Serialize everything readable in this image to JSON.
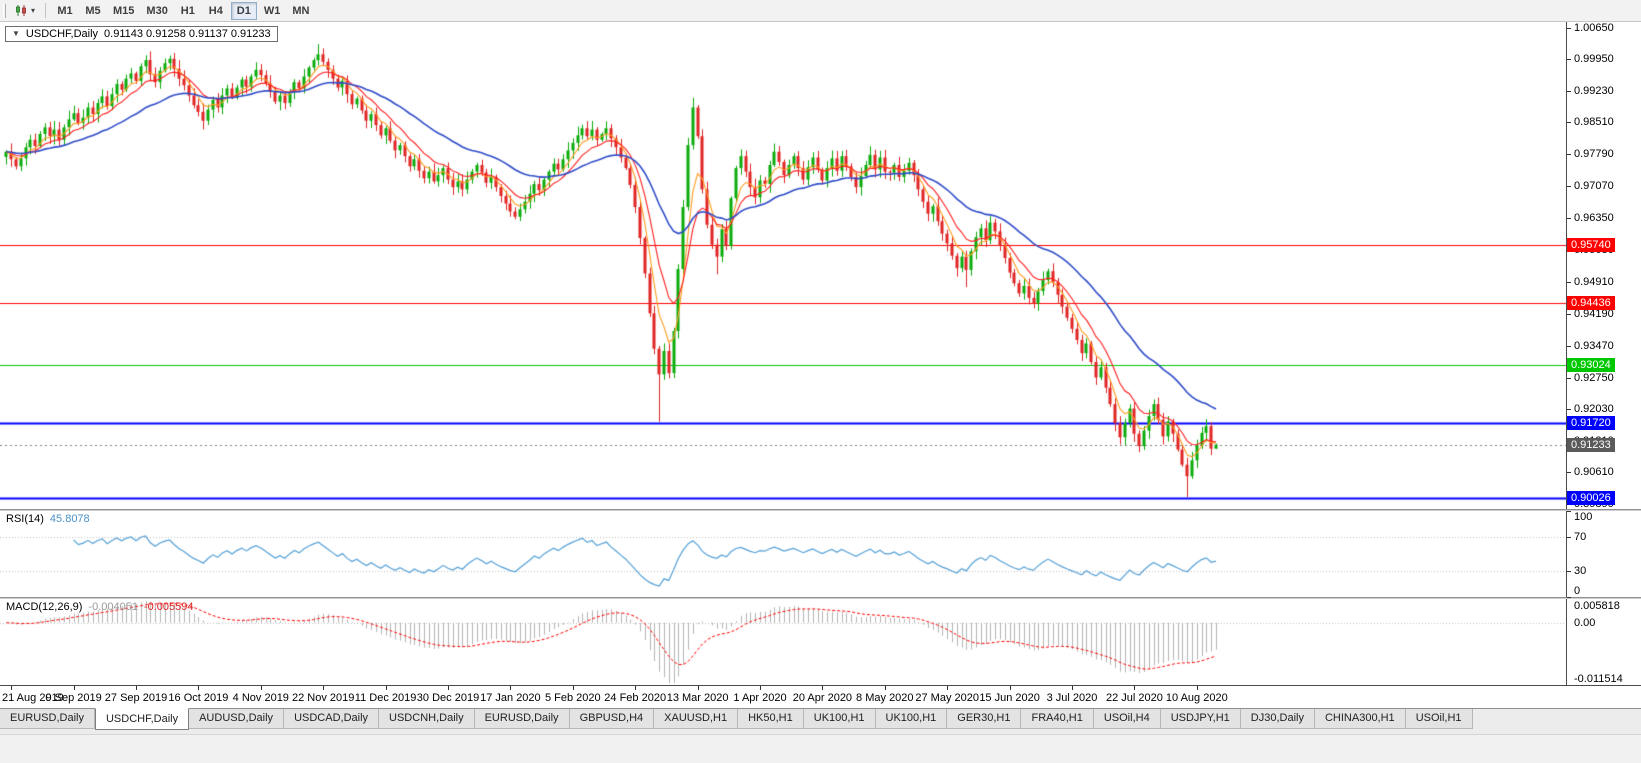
{
  "toolbar": {
    "chart_menu_icon": "candlestick-chart-icon",
    "timeframes": [
      "M1",
      "M5",
      "M15",
      "M30",
      "H1",
      "H4",
      "D1",
      "W1",
      "MN"
    ],
    "active_timeframe": "D1"
  },
  "chart_header": {
    "symbol_label": "USDCHF,Daily",
    "ohlc": "0.91143 0.91258 0.91137 0.91233"
  },
  "price_axis": {
    "ticks": [
      "1.00650",
      "0.99950",
      "0.99230",
      "0.98510",
      "0.97790",
      "0.97070",
      "0.96350",
      "0.95630",
      "0.94910",
      "0.94190",
      "0.93470",
      "0.92750",
      "0.92030",
      "0.91310",
      "0.90610",
      "0.89890"
    ]
  },
  "time_axis": {
    "labels": [
      {
        "text": "21 Aug 2019",
        "bar": 1
      },
      {
        "text": "9 Sep 2019",
        "bar": 14
      },
      {
        "text": "27 Sep 2019",
        "bar": 27
      },
      {
        "text": "16 Oct 2019",
        "bar": 40
      },
      {
        "text": "4 Nov 2019",
        "bar": 53
      },
      {
        "text": "22 Nov 2019",
        "bar": 66
      },
      {
        "text": "11 Dec 2019",
        "bar": 79
      },
      {
        "text": "30 Dec 2019",
        "bar": 92
      },
      {
        "text": "17 Jan 2020",
        "bar": 105
      },
      {
        "text": "5 Feb 2020",
        "bar": 118
      },
      {
        "text": "24 Feb 2020",
        "bar": 131
      },
      {
        "text": "13 Mar 2020",
        "bar": 144
      },
      {
        "text": "1 Apr 2020",
        "bar": 157
      },
      {
        "text": "20 Apr 2020",
        "bar": 170
      },
      {
        "text": "8 May 2020",
        "bar": 183
      },
      {
        "text": "27 May 2020",
        "bar": 196
      },
      {
        "text": "15 Jun 2020",
        "bar": 209
      },
      {
        "text": "3 Jul 2020",
        "bar": 222
      },
      {
        "text": "22 Jul 2020",
        "bar": 235
      },
      {
        "text": "10 Aug 2020",
        "bar": 248
      }
    ]
  },
  "tabs": {
    "items": [
      "EURUSD,Daily",
      "USDCHF,Daily",
      "AUDUSD,Daily",
      "USDCAD,Daily",
      "USDCNH,Daily",
      "EURUSD,Daily",
      "GBPUSD,H4",
      "XAUUSD,H1",
      "HK50,H1",
      "UK100,H1",
      "UK100,H1",
      "GER30,H1",
      "FRA40,H1",
      "USOil,H4",
      "USDJPY,H1",
      "DJ30,Daily",
      "CHINA300,H1",
      "USOil,H1"
    ],
    "active_index": 1
  },
  "chart_data": {
    "type": "candlestick",
    "symbol": "USDCHF",
    "period": "Daily",
    "ohlc_display": {
      "open": 0.91143,
      "high": 0.91258,
      "low": 0.91137,
      "close": 0.91233
    },
    "price_range": {
      "top": 1.0078,
      "bottom": 0.8978
    },
    "colors": {
      "up": "#0bab0b",
      "down": "#e02525",
      "ma_fast": "#ff9b1f",
      "ma_mid": "#ff1f1f",
      "ma_slow": "#2f4cc8",
      "level_red": "#ff0000",
      "level_green": "#00c800",
      "level_blue": "#0000ff",
      "current_price": "#5a5a5a",
      "rsi_line": "#55a0d7",
      "macd_hist": "#b4b4b4",
      "macd_signal": "#ff0000",
      "grid_dotted": "#c0c0c0"
    },
    "levels": [
      {
        "price": 0.9574,
        "label": "0.95740",
        "color": "#ff0000"
      },
      {
        "price": 0.94436,
        "label": "0.94436",
        "color": "#ff0000"
      },
      {
        "price": 0.93024,
        "label": "0.93024",
        "color": "#00c800"
      },
      {
        "price": 0.9172,
        "label": "0.91720",
        "color": "#0000ff"
      },
      {
        "price": 0.90026,
        "label": "0.90026",
        "color": "#0000ff"
      }
    ],
    "current_price": {
      "price": 0.91233,
      "label": "0.91233"
    },
    "moving_averages": [
      {
        "period": 5,
        "color": "#ff9b1f"
      },
      {
        "period": 10,
        "color": "#ff1f1f"
      },
      {
        "period": 30,
        "color": "#2f4cc8"
      }
    ],
    "rsi": {
      "name": "RSI(14)",
      "period": 14,
      "value_display": "45.8078",
      "scale": [
        100,
        70,
        30,
        0
      ],
      "guide_levels": [
        70,
        30
      ]
    },
    "macd": {
      "name": "MACD(12,26,9)",
      "fast": 12,
      "slow": 26,
      "signal_period": 9,
      "value_display": "-0.004051",
      "signal_display": "-0.005594",
      "scale_labels": [
        "0.005818",
        "0.00",
        "-0.011514"
      ]
    },
    "closes": [
      0.9785,
      0.9768,
      0.9752,
      0.977,
      0.9795,
      0.9812,
      0.9798,
      0.9825,
      0.984,
      0.982,
      0.9835,
      0.9812,
      0.984,
      0.9858,
      0.9872,
      0.985,
      0.9862,
      0.9885,
      0.987,
      0.9895,
      0.991,
      0.9888,
      0.9915,
      0.9938,
      0.9925,
      0.995,
      0.9962,
      0.9945,
      0.9978,
      0.9992,
      0.996,
      0.9942,
      0.9968,
      0.9985,
      0.9995,
      0.9972,
      0.995,
      0.9935,
      0.9912,
      0.989,
      0.9875,
      0.9855,
      0.988,
      0.9902,
      0.9885,
      0.9912,
      0.9928,
      0.9908,
      0.993,
      0.9948,
      0.9932,
      0.9955,
      0.997,
      0.9958,
      0.994,
      0.992,
      0.9898,
      0.9912,
      0.9895,
      0.992,
      0.9942,
      0.9928,
      0.9955,
      0.9975,
      0.9992,
      1.0005,
      0.9988,
      0.997,
      0.995,
      0.993,
      0.9945,
      0.9915,
      0.9892,
      0.9905,
      0.9878,
      0.9855,
      0.987,
      0.9845,
      0.9822,
      0.9838,
      0.981,
      0.9788,
      0.98,
      0.9775,
      0.9752,
      0.9768,
      0.9742,
      0.9725,
      0.974,
      0.9718,
      0.9732,
      0.9748,
      0.9722,
      0.9705,
      0.9718,
      0.97,
      0.9722,
      0.974,
      0.9755,
      0.9738,
      0.9715,
      0.9728,
      0.9705,
      0.9685,
      0.9668,
      0.965,
      0.9638,
      0.9655,
      0.9672,
      0.969,
      0.9712,
      0.9698,
      0.9722,
      0.974,
      0.9758,
      0.9745,
      0.9768,
      0.9788,
      0.9805,
      0.9822,
      0.9838,
      0.982,
      0.9835,
      0.9812,
      0.9825,
      0.9838,
      0.9815,
      0.9795,
      0.9772,
      0.9748,
      0.971,
      0.966,
      0.959,
      0.951,
      0.942,
      0.934,
      0.9282,
      0.9335,
      0.9285,
      0.938,
      0.952,
      0.966,
      0.98,
      0.9885,
      0.982,
      0.97,
      0.962,
      0.9575,
      0.9548,
      0.961,
      0.9572,
      0.968,
      0.9748,
      0.9775,
      0.974,
      0.9705,
      0.9682,
      0.972,
      0.9712,
      0.9755,
      0.9785,
      0.9762,
      0.9732,
      0.9755,
      0.9775,
      0.9748,
      0.9722,
      0.975,
      0.9772,
      0.9745,
      0.972,
      0.9748,
      0.977,
      0.9742,
      0.9775,
      0.9752,
      0.9728,
      0.9705,
      0.973,
      0.9755,
      0.9778,
      0.9745,
      0.9772,
      0.974,
      0.9738,
      0.9755,
      0.9728,
      0.9742,
      0.976,
      0.9732,
      0.97,
      0.9672,
      0.9645,
      0.9662,
      0.9628,
      0.96,
      0.9578,
      0.955,
      0.9522,
      0.9548,
      0.9518,
      0.956,
      0.9592,
      0.9612,
      0.9585,
      0.9625,
      0.9605,
      0.9572,
      0.9545,
      0.9512,
      0.9488,
      0.9465,
      0.9482,
      0.9455,
      0.9442,
      0.947,
      0.9495,
      0.9515,
      0.949,
      0.9462,
      0.9435,
      0.941,
      0.9385,
      0.936,
      0.933,
      0.9352,
      0.931,
      0.9275,
      0.9298,
      0.9252,
      0.9215,
      0.9172,
      0.914,
      0.9172,
      0.9205,
      0.9148,
      0.912,
      0.9155,
      0.9188,
      0.9215,
      0.918,
      0.9142,
      0.9176,
      0.9148,
      0.9112,
      0.9078,
      0.9052,
      0.9088,
      0.9122,
      0.915,
      0.9165,
      0.91143,
      0.91233
    ],
    "wick_overrides": {
      "65": {
        "high": 1.0028
      },
      "136": {
        "low": 0.9175
      },
      "143": {
        "high": 0.9907
      },
      "148": {
        "low": 0.9508
      },
      "200": {
        "low": 0.9479
      },
      "246": {
        "low": 0.9005
      },
      "252": {
        "high": 0.91258,
        "low": 0.91137
      }
    }
  }
}
